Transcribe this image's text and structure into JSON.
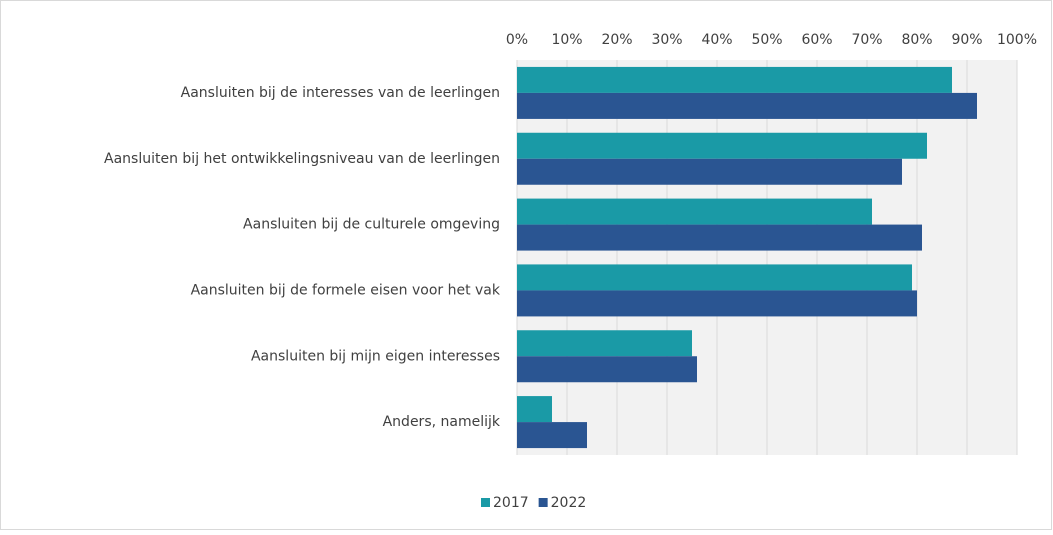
{
  "chart_data": {
    "type": "bar",
    "orientation": "horizontal",
    "categories": [
      "Aansluiten bij de interesses van de leerlingen",
      "Aansluiten bij het ontwikkelingsniveau van de leerlingen",
      "Aansluiten bij de culturele omgeving",
      "Aansluiten bij de formele eisen voor het vak",
      "Aansluiten bij mijn eigen interesses",
      "Anders, namelijk"
    ],
    "series": [
      {
        "name": "2017",
        "color": "#1a9aa6",
        "values": [
          87,
          82,
          71,
          79,
          35,
          7
        ]
      },
      {
        "name": "2022",
        "color": "#2a5592",
        "values": [
          92,
          77,
          81,
          80,
          36,
          14
        ]
      }
    ],
    "xlim": [
      0,
      100
    ],
    "xticks": [
      {
        "value": 0,
        "label": "0%"
      },
      {
        "value": 10,
        "label": "10%"
      },
      {
        "value": 20,
        "label": "20%"
      },
      {
        "value": 30,
        "label": "30%"
      },
      {
        "value": 40,
        "label": "40%"
      },
      {
        "value": 50,
        "label": "50%"
      },
      {
        "value": 60,
        "label": "60%"
      },
      {
        "value": 70,
        "label": "70%"
      },
      {
        "value": 80,
        "label": "80%"
      },
      {
        "value": 90,
        "label": "90%"
      },
      {
        "value": 100,
        "label": "100%"
      }
    ],
    "grid": true,
    "legend": "bottom"
  }
}
